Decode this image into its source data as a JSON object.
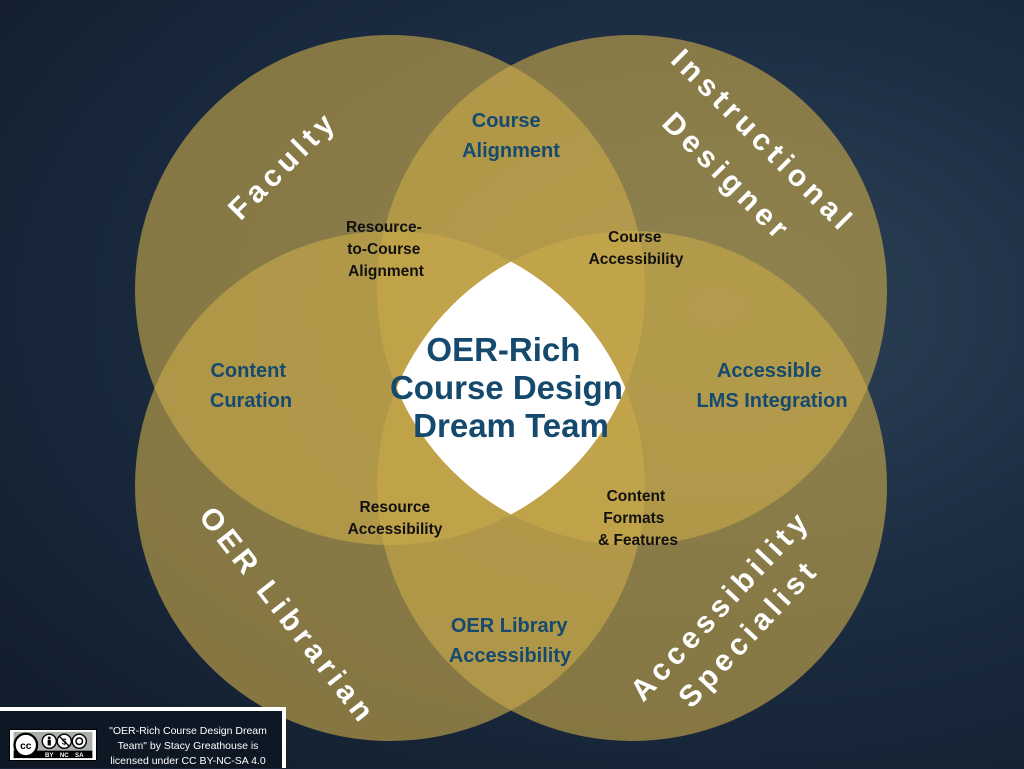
{
  "roles": {
    "faculty": "Faculty",
    "instructional_designer_line1": "Instructional",
    "instructional_designer_line2": "Designer",
    "oer_librarian": "OER Librarian",
    "accessibility_specialist_line1": "Accessibility",
    "accessibility_specialist_line2": "Specialist"
  },
  "zones": {
    "course_alignment": [
      "Course",
      "Alignment"
    ],
    "content_curation": [
      "Content",
      "Curation"
    ],
    "accessible_lms": [
      "Accessible",
      "LMS Integration"
    ],
    "oer_library_accessibility": [
      "OER Library",
      "Accessibility"
    ],
    "resource_to_course": [
      "Resource-",
      "to-Course",
      "Alignment"
    ],
    "course_accessibility": [
      "Course",
      "Accessibility"
    ],
    "resource_accessibility": [
      "Resource",
      "Accessibility"
    ],
    "content_formats": [
      "Content",
      "Formats",
      "& Features"
    ]
  },
  "center": [
    "OER-Rich",
    "Course Design",
    "Dream Team"
  ],
  "license": {
    "badge": [
      "BY",
      "NC",
      "SA"
    ],
    "text_line1": "\"OER-Rich Course Design Dream",
    "text_line2": "Team\" by Stacy Greathouse is",
    "text_line3": "licensed under CC BY-NC-SA 4.0"
  },
  "colors": {
    "background": "#162437",
    "circle_fill": "#c9a94a",
    "center_fill": "#ffffff",
    "zone_text": "#154a6e",
    "small_text": "#111111"
  }
}
